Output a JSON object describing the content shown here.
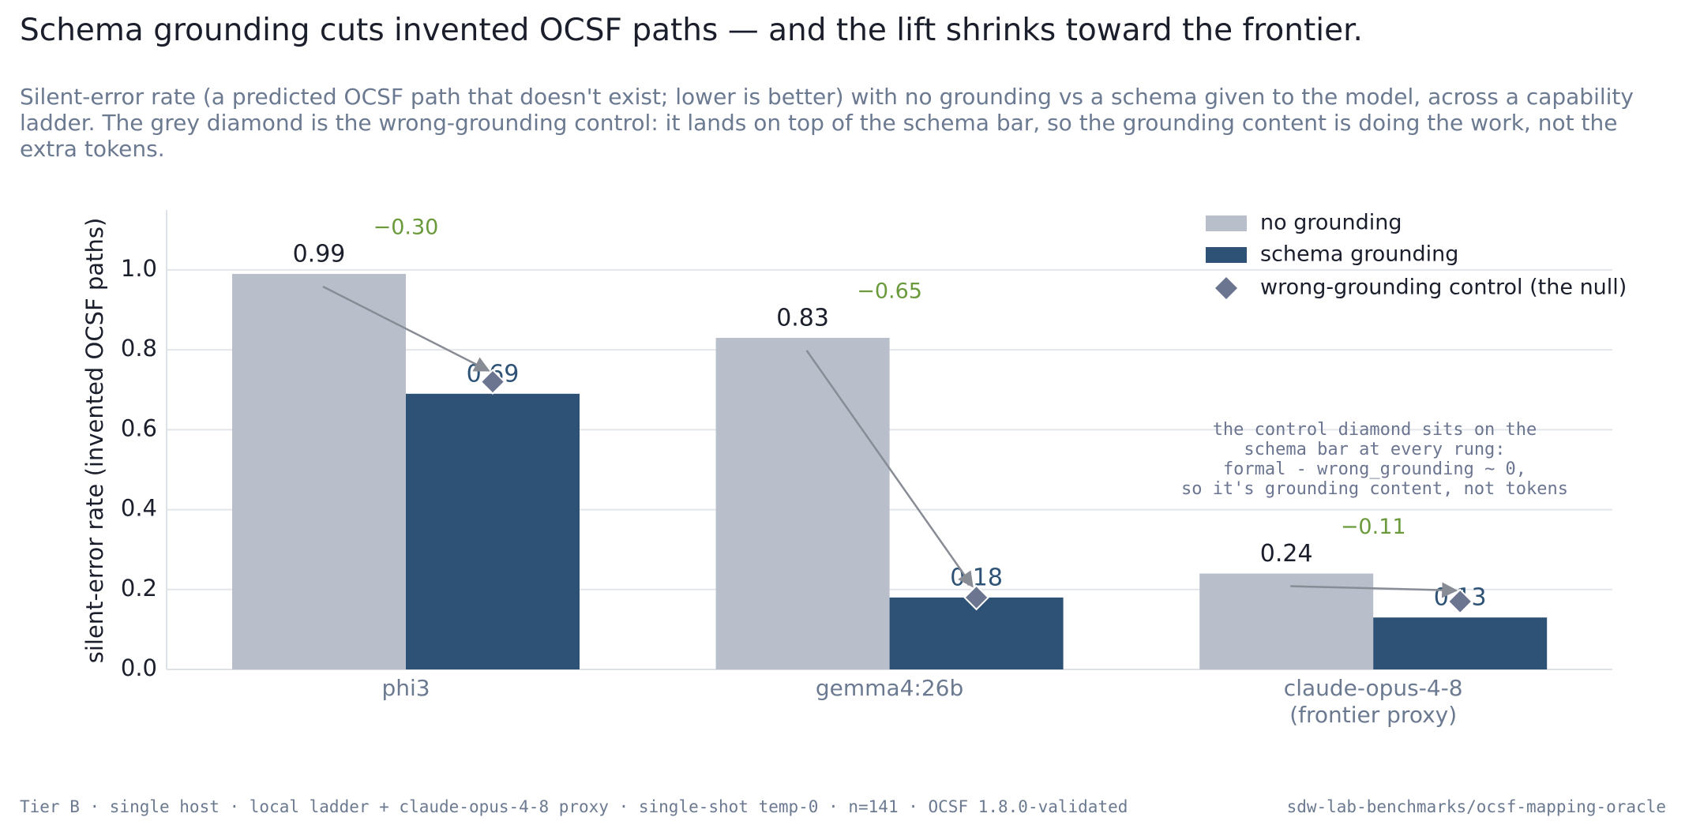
{
  "chart_data": {
    "type": "bar",
    "title": "Schema grounding cuts invented OCSF paths — and the lift shrinks toward the frontier.",
    "subtitle": "Silent-error rate (a predicted OCSF path that doesn't exist; lower is better) with no grounding vs a schema given to the model, across a capability ladder. The grey diamond is the wrong-grounding control: it lands on top of the schema bar, so the grounding content is doing the work, not the extra tokens.",
    "y_label": "silent-error rate  (invented OCSF paths)",
    "categories": [
      "phi3",
      "gemma4:26b",
      "claude-opus-4-8\n(frontier proxy)"
    ],
    "series": [
      {
        "name": "no grounding",
        "color": "#b8bfcb",
        "values": [
          0.99,
          0.83,
          0.24
        ]
      },
      {
        "name": "schema grounding",
        "color": "#2d5275",
        "values": [
          0.69,
          0.18,
          0.13
        ]
      },
      {
        "name": "wrong-grounding control (the null)",
        "color": "#6b7590",
        "marker": "diamond",
        "values": [
          0.72,
          0.18,
          0.17
        ]
      }
    ],
    "deltas": {
      "color": "#6a9a3c",
      "values": [
        -0.3,
        -0.65,
        -0.11
      ],
      "value_labels": [
        "−0.30",
        "−0.65",
        "−0.11"
      ]
    },
    "ylim": [
      0,
      1.15
    ],
    "yticks": [
      {
        "value": 0,
        "label": "0.0"
      },
      0.2,
      0.4,
      0.6,
      0.8,
      {
        "value": 1,
        "label": "1.0"
      }
    ],
    "grid": true,
    "legend": "upper right",
    "annotation": [
      "the control diamond sits on the",
      "schema bar at every rung:",
      "formal - wrong_grounding ~ 0,",
      "so it's grounding content, not tokens"
    ],
    "footer_left": "Tier B · single host · local ladder + claude-opus-4-8 proxy · single-shot temp-0 · n=141 · OCSF 1.8.0-validated",
    "footer_right": "sdw-lab-benchmarks/ocsf-mapping-oracle"
  }
}
